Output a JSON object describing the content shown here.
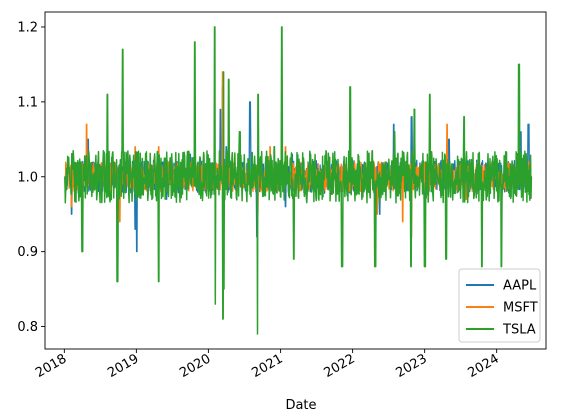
{
  "chart_data": {
    "type": "line",
    "title": "",
    "xlabel": "Date",
    "ylabel": "",
    "xlim": [
      "2017-09-25",
      "2024-09-07"
    ],
    "ylim": [
      0.77,
      1.22
    ],
    "x_ticks": [
      {
        "date": "2018-01-01",
        "label": "2018"
      },
      {
        "date": "2019-01-01",
        "label": "2019"
      },
      {
        "date": "2020-01-01",
        "label": "2020"
      },
      {
        "date": "2021-01-01",
        "label": "2021"
      },
      {
        "date": "2022-01-01",
        "label": "2022"
      },
      {
        "date": "2023-01-01",
        "label": "2023"
      },
      {
        "date": "2024-01-01",
        "label": "2024"
      }
    ],
    "y_ticks": [
      {
        "value": 0.8,
        "label": "0.8"
      },
      {
        "value": 0.9,
        "label": "0.9"
      },
      {
        "value": 1.0,
        "label": "1.0"
      },
      {
        "value": 1.1,
        "label": "1.1"
      },
      {
        "value": 1.2,
        "label": "1.2"
      }
    ],
    "grid": false,
    "legend_position": "bottom-right",
    "series": [
      {
        "name": "AAPL",
        "color": "#1f77b4",
        "x": [
          "2018-01-02",
          "2018-02-08",
          "2018-05-02",
          "2018-09-05",
          "2018-12-26",
          "2019-01-03",
          "2019-03-01",
          "2019-06-03",
          "2019-10-01",
          "2020-01-02",
          "2020-03-02",
          "2020-03-13",
          "2020-03-16",
          "2020-04-01",
          "2020-07-31",
          "2020-09-03",
          "2020-12-01",
          "2021-01-27",
          "2021-03-01",
          "2021-06-01",
          "2021-10-01",
          "2022-01-03",
          "2022-04-29",
          "2022-05-18",
          "2022-07-29",
          "2022-10-28",
          "2022-11-10",
          "2023-01-03",
          "2023-05-05",
          "2023-08-04",
          "2024-01-02",
          "2024-05-03",
          "2024-06-11",
          "2024-06-28"
        ],
        "y": [
          1.0,
          0.95,
          1.05,
          0.99,
          0.93,
          0.9,
          1.02,
          0.97,
          1.03,
          1.0,
          1.09,
          1.12,
          0.87,
          1.04,
          1.1,
          0.92,
          1.02,
          0.96,
          1.03,
          0.98,
          1.02,
          0.99,
          0.96,
          0.95,
          1.07,
          1.08,
          1.09,
          0.96,
          1.05,
          0.97,
          1.0,
          1.06,
          1.07,
          1.0
        ]
      },
      {
        "name": "MSFT",
        "color": "#ff7f0e",
        "x": [
          "2018-01-02",
          "2018-02-08",
          "2018-04-25",
          "2018-10-10",
          "2018-12-26",
          "2019-04-25",
          "2019-10-01",
          "2020-01-02",
          "2020-03-13",
          "2020-03-16",
          "2020-06-01",
          "2020-09-08",
          "2020-11-09",
          "2021-01-27",
          "2021-06-01",
          "2021-10-01",
          "2022-01-03",
          "2022-05-05",
          "2022-09-13",
          "2022-10-26",
          "2022-11-10",
          "2023-04-26",
          "2023-08-01",
          "2024-01-30",
          "2024-04-26",
          "2024-06-28"
        ],
        "y": [
          1.0,
          0.96,
          1.07,
          0.94,
          1.04,
          1.04,
          0.99,
          1.0,
          1.14,
          0.86,
          1.03,
          0.95,
          1.04,
          1.04,
          0.99,
          1.02,
          0.99,
          0.95,
          0.94,
          0.92,
          1.08,
          1.07,
          0.97,
          1.0,
          1.04,
          1.0
        ]
      },
      {
        "name": "TSLA",
        "color": "#2ca02c",
        "x": [
          "2018-01-02",
          "2018-04-02",
          "2018-08-08",
          "2018-09-28",
          "2018-10-24",
          "2019-04-25",
          "2019-10-24",
          "2020-02-03",
          "2020-02-05",
          "2020-03-16",
          "2020-03-18",
          "2020-03-20",
          "2020-04-14",
          "2020-06-08",
          "2020-09-08",
          "2020-09-09",
          "2020-12-01",
          "2021-01-08",
          "2021-03-09",
          "2021-06-01",
          "2021-11-09",
          "2021-12-20",
          "2022-04-26",
          "2022-08-01",
          "2022-10-24",
          "2022-11-10",
          "2023-01-03",
          "2023-01-27",
          "2023-04-20",
          "2023-07-20",
          "2023-10-19",
          "2024-01-25",
          "2024-04-24",
          "2024-06-28"
        ],
        "y": [
          1.0,
          0.9,
          1.11,
          0.86,
          1.17,
          0.86,
          1.18,
          1.2,
          0.83,
          0.81,
          1.14,
          0.85,
          1.13,
          1.06,
          0.79,
          1.11,
          1.04,
          1.2,
          0.89,
          1.03,
          0.88,
          1.12,
          0.88,
          1.06,
          0.88,
          1.09,
          0.88,
          1.11,
          0.89,
          1.08,
          0.88,
          0.88,
          1.15,
          1.0
        ]
      }
    ]
  }
}
